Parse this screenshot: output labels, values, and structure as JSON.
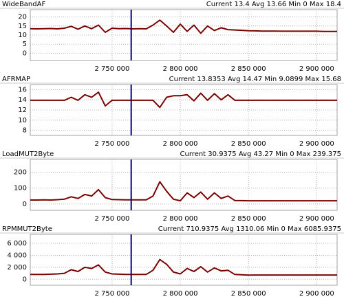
{
  "chart_data": [
    {
      "type": "line",
      "title": "WideBandAF",
      "subtitle": "Current 13.4 Avg 13.66 Min 0 Max 18.4",
      "color": "#7a0000",
      "grid": true,
      "cursor": 2764000,
      "x": [
        2690000,
        2695000,
        2700000,
        2705000,
        2710000,
        2715000,
        2720000,
        2725000,
        2730000,
        2735000,
        2740000,
        2745000,
        2750000,
        2755000,
        2760000,
        2765000,
        2770000,
        2775000,
        2780000,
        2785000,
        2790000,
        2795000,
        2800000,
        2805000,
        2810000,
        2815000,
        2820000,
        2825000,
        2830000,
        2835000,
        2840000,
        2845000,
        2850000,
        2855000,
        2860000,
        2865000,
        2870000,
        2875000,
        2880000,
        2885000,
        2890000,
        2895000,
        2900000,
        2905000,
        2910000,
        2915000
      ],
      "values": [
        13.5,
        13.4,
        13.5,
        13.6,
        13.4,
        13.8,
        14.8,
        13.2,
        15,
        13.5,
        15.5,
        11.5,
        13.8,
        13.5,
        13.6,
        13.4,
        13.5,
        13.4,
        15.5,
        18.2,
        15,
        11.5,
        16,
        12,
        15.5,
        11,
        15,
        12.5,
        14,
        13,
        12.8,
        12.6,
        12.4,
        12.3,
        12.2,
        12.2,
        12.2,
        12.1,
        12.1,
        12.1,
        12.1,
        12.1,
        12.1,
        12,
        12,
        12
      ],
      "xlim": [
        2690000,
        2915000
      ],
      "xticks": [
        {
          "value": 2750000,
          "label": "2 750 000"
        },
        {
          "value": 2800000,
          "label": "2 800 000"
        },
        {
          "value": 2850000,
          "label": "2 850 000"
        },
        {
          "value": 2900000,
          "label": "2 900 000"
        }
      ],
      "ylim": [
        -4,
        24
      ],
      "yticks": [
        0,
        5,
        10,
        15,
        20
      ]
    },
    {
      "type": "line",
      "title": "AFRMAP",
      "subtitle": "Current 13.8353 Avg 14.47 Min 9.0899 Max 15.68",
      "color": "#7a0000",
      "grid": true,
      "cursor": 2764000,
      "x": [
        2690000,
        2695000,
        2700000,
        2705000,
        2710000,
        2715000,
        2720000,
        2725000,
        2730000,
        2735000,
        2740000,
        2745000,
        2750000,
        2755000,
        2760000,
        2765000,
        2770000,
        2775000,
        2780000,
        2785000,
        2790000,
        2795000,
        2800000,
        2805000,
        2810000,
        2815000,
        2820000,
        2825000,
        2830000,
        2835000,
        2840000,
        2845000,
        2850000,
        2855000,
        2860000,
        2865000,
        2870000,
        2875000,
        2880000,
        2885000,
        2890000,
        2895000,
        2900000,
        2905000,
        2910000,
        2915000
      ],
      "values": [
        13.9,
        13.9,
        13.9,
        13.9,
        13.9,
        13.9,
        14.5,
        13.9,
        15,
        14.5,
        15.5,
        12.8,
        13.9,
        13.9,
        13.9,
        13.9,
        13.9,
        13.9,
        13.9,
        12.5,
        14.5,
        14.8,
        14.8,
        15,
        13.8,
        15.3,
        13.9,
        15.2,
        14,
        15,
        13.9,
        13.9,
        13.9,
        13.9,
        13.9,
        13.9,
        13.9,
        13.9,
        13.9,
        13.9,
        13.9,
        13.9,
        13.9,
        13.9,
        13.9,
        13.9
      ],
      "xlim": [
        2690000,
        2915000
      ],
      "xticks": [
        {
          "value": 2750000,
          "label": "2 750 000"
        },
        {
          "value": 2800000,
          "label": "2 800 000"
        },
        {
          "value": 2850000,
          "label": "2 850 000"
        },
        {
          "value": 2900000,
          "label": "2 900 000"
        }
      ],
      "ylim": [
        7,
        17
      ],
      "yticks": [
        8,
        10,
        12,
        14,
        16
      ]
    },
    {
      "type": "line",
      "title": "LoadMUT2Byte",
      "subtitle": "Current 30.9375 Avg 43.27 Min 0 Max 239.375",
      "color": "#7a0000",
      "grid": true,
      "cursor": 2764000,
      "x": [
        2690000,
        2695000,
        2700000,
        2705000,
        2710000,
        2715000,
        2720000,
        2725000,
        2730000,
        2735000,
        2740000,
        2745000,
        2750000,
        2755000,
        2760000,
        2765000,
        2770000,
        2775000,
        2780000,
        2785000,
        2790000,
        2795000,
        2800000,
        2805000,
        2810000,
        2815000,
        2820000,
        2825000,
        2830000,
        2835000,
        2840000,
        2845000,
        2850000,
        2855000,
        2860000,
        2865000,
        2870000,
        2875000,
        2880000,
        2885000,
        2890000,
        2895000,
        2900000,
        2905000,
        2910000,
        2915000
      ],
      "values": [
        25,
        25,
        26,
        25,
        27,
        30,
        45,
        35,
        60,
        50,
        90,
        40,
        28,
        27,
        26,
        26,
        26,
        26,
        50,
        140,
        80,
        30,
        20,
        70,
        40,
        75,
        30,
        70,
        35,
        50,
        22,
        21,
        20,
        20,
        20,
        20,
        20,
        20,
        20,
        20,
        20,
        20,
        20,
        20,
        20,
        20
      ],
      "xlim": [
        2690000,
        2915000
      ],
      "xticks": [
        {
          "value": 2750000,
          "label": "2 750 000"
        },
        {
          "value": 2800000,
          "label": "2 800 000"
        },
        {
          "value": 2850000,
          "label": "2 850 000"
        },
        {
          "value": 2900000,
          "label": "2 900 000"
        }
      ],
      "ylim": [
        -40,
        280
      ],
      "yticks": [
        0,
        100,
        200
      ]
    },
    {
      "type": "line",
      "title": "RPMMUT2Byte",
      "subtitle": "Current 710.9375 Avg 1310.06 Min 0 Max 6085.9375",
      "color": "#7a0000",
      "grid": true,
      "cursor": 2764000,
      "x": [
        2690000,
        2695000,
        2700000,
        2705000,
        2710000,
        2715000,
        2720000,
        2725000,
        2730000,
        2735000,
        2740000,
        2745000,
        2750000,
        2755000,
        2760000,
        2765000,
        2770000,
        2775000,
        2780000,
        2785000,
        2790000,
        2795000,
        2800000,
        2805000,
        2810000,
        2815000,
        2820000,
        2825000,
        2830000,
        2835000,
        2840000,
        2845000,
        2850000,
        2855000,
        2860000,
        2865000,
        2870000,
        2875000,
        2880000,
        2885000,
        2890000,
        2895000,
        2900000,
        2905000,
        2910000,
        2915000
      ],
      "values": [
        800,
        800,
        800,
        850,
        900,
        1000,
        1600,
        1300,
        2000,
        1800,
        2400,
        1200,
        900,
        850,
        800,
        800,
        800,
        800,
        1500,
        3300,
        2500,
        1200,
        900,
        1800,
        1300,
        2100,
        1200,
        1900,
        1400,
        1500,
        800,
        750,
        700,
        710,
        710,
        710,
        710,
        710,
        710,
        710,
        710,
        710,
        710,
        710,
        710,
        710
      ],
      "xlim": [
        2690000,
        2915000
      ],
      "xticks": [
        {
          "value": 2750000,
          "label": "2 750 000"
        },
        {
          "value": 2800000,
          "label": "2 800 000"
        },
        {
          "value": 2850000,
          "label": "2 850 000"
        },
        {
          "value": 2900000,
          "label": "2 900 000"
        }
      ],
      "ylim": [
        -1000,
        7500
      ],
      "yticks": [
        0,
        {
          "value": 2000,
          "label": "2 000"
        },
        {
          "value": 4000,
          "label": "4 000"
        },
        {
          "value": 6000,
          "label": "6 000"
        }
      ]
    }
  ]
}
